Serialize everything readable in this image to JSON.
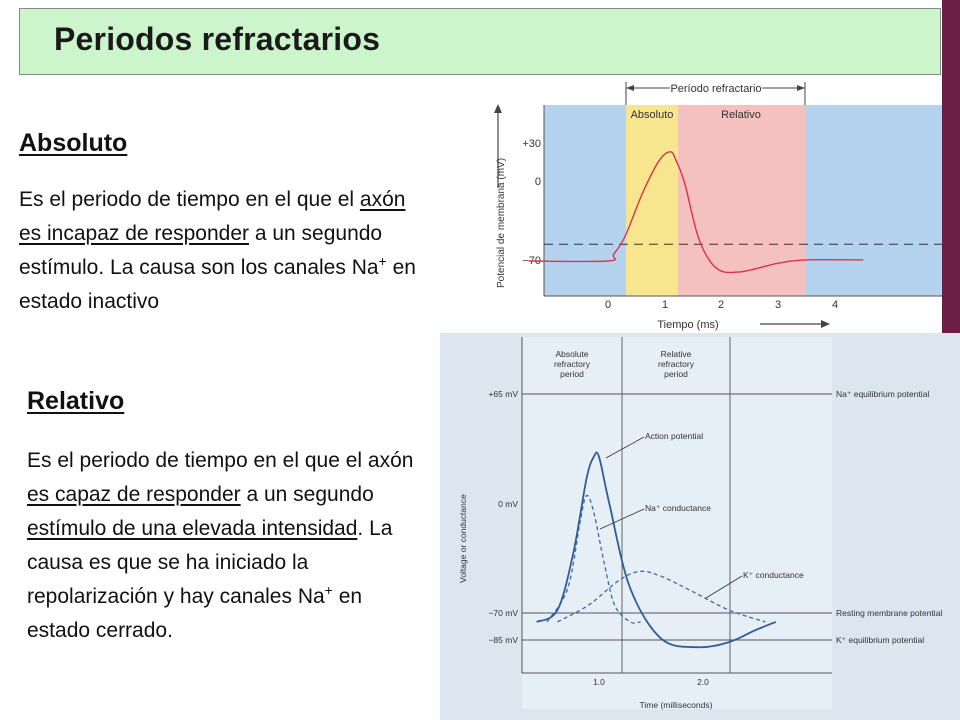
{
  "title": "Periodos refractarios",
  "absoluto": {
    "heading": "Absoluto",
    "t1": "Es el periodo de tiempo en el que el ",
    "t2": "axón es incapaz de responder",
    "t3": " a un segundo estímulo. La causa son los canales Na",
    "sup": "+",
    "t4": " en estado inactivo"
  },
  "relativo": {
    "heading": "Relativo",
    "t1": "Es el periodo de tiempo en el que el axón ",
    "t2": "es capaz de responder",
    "t3": " a un segundo ",
    "t4": "estímulo de una elevada intensidad",
    "t5": ". La causa es que se ha iniciado la repolarización y hay canales Na",
    "sup": "+",
    "t6": " en estado cerrado."
  },
  "chart_data": [
    {
      "type": "line",
      "header": "Período refractario",
      "regions": [
        "Absoluto",
        "Relativo"
      ],
      "ylabel": "Potencial de membrana (mV)",
      "xlabel": "Tiempo (ms)",
      "yticks": [
        "+30",
        "0",
        "−70"
      ],
      "xticks": [
        "0",
        "1",
        "2",
        "3",
        "4"
      ],
      "xlim": [
        -1.4,
        4.5
      ],
      "ylim": [
        -110,
        50
      ],
      "series": [
        {
          "x": [
            -1.4,
            0.0,
            0.1,
            0.3,
            0.6,
            0.9,
            1.1,
            1.2,
            1.35,
            1.6,
            1.9,
            2.3,
            3.0,
            3.5,
            4.5
          ],
          "y": [
            -70,
            -70,
            -64,
            -48,
            -10,
            20,
            28,
            20,
            0,
            -50,
            -76,
            -80,
            -72,
            -69,
            -69
          ]
        }
      ],
      "threshold": -55
    },
    {
      "type": "line",
      "headers": [
        "Absolute refractory period",
        "Relative refractory period"
      ],
      "ylabel": "Voltage or conductance",
      "xlabel": "Time (milliseconds)",
      "yticks": [
        "+65 mV",
        "0 mV",
        "−70 mV",
        "−85 mV"
      ],
      "xticks": [
        "1.0",
        "2.0"
      ],
      "xlim": [
        0,
        3.0
      ],
      "ylim": [
        -100,
        80
      ],
      "reference_lines": [
        {
          "label": "Na⁺ equilibrium potential",
          "y": 65
        },
        {
          "label": "Resting membrane potential",
          "y": -70
        },
        {
          "label": "K⁺ equilibrium potential",
          "y": -85
        }
      ],
      "series": [
        {
          "name": "Action potential",
          "x": [
            0.4,
            0.6,
            0.75,
            0.88,
            0.95,
            1.0,
            1.1,
            1.3,
            1.6,
            1.95,
            2.25,
            2.5,
            2.7
          ],
          "y": [
            -70,
            -63,
            -30,
            15,
            28,
            28,
            0,
            -50,
            -80,
            -85,
            -82,
            -75,
            -70
          ]
        },
        {
          "name": "Na⁺ conductance",
          "x": [
            0.5,
            0.7,
            0.82,
            0.88,
            0.95,
            1.05,
            1.15,
            1.3,
            1.4
          ],
          "y": [
            -70,
            -50,
            -10,
            5,
            -5,
            -35,
            -60,
            -70,
            -70
          ]
        },
        {
          "name": "K⁺ conductance",
          "x": [
            0.6,
            0.9,
            1.2,
            1.4,
            1.6,
            1.9,
            2.25,
            2.6
          ],
          "y": [
            -70,
            -60,
            -45,
            -40,
            -43,
            -52,
            -63,
            -70
          ]
        }
      ]
    }
  ]
}
